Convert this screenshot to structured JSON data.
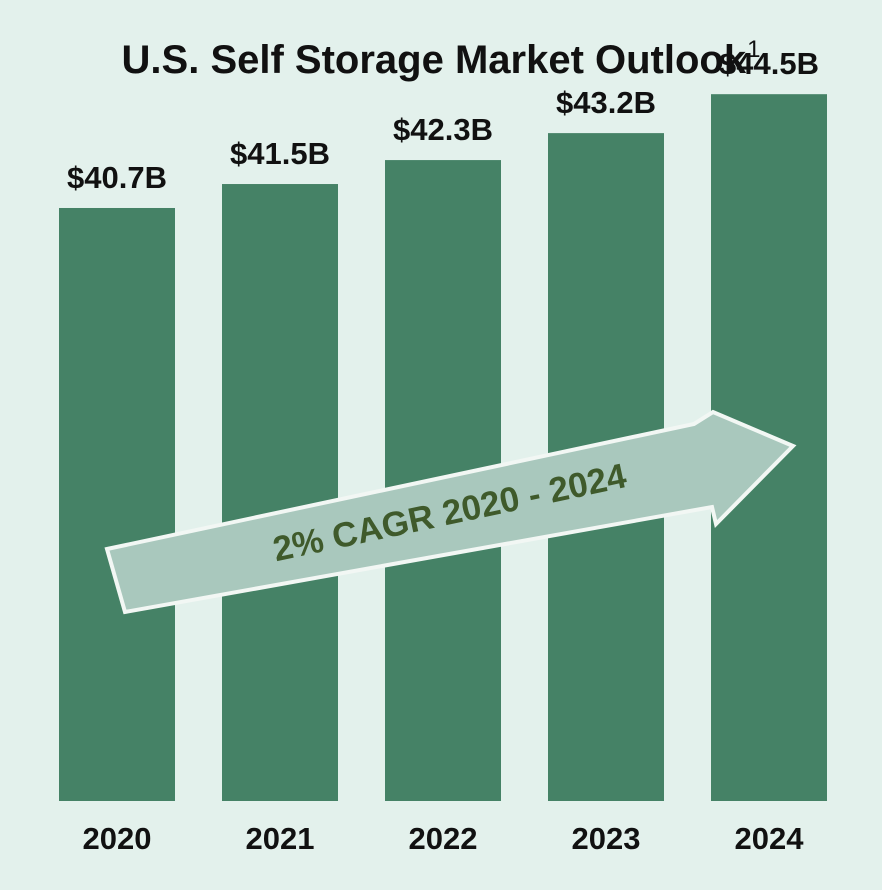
{
  "title": "U.S. Self Storage Market Outlook",
  "title_footnote": "1",
  "colors": {
    "background": "#e3f1ec",
    "bar": "#458266",
    "arrow_fill": "#a9c8bd",
    "arrow_stroke": "#f2f7f4",
    "arrow_text": "#3f5a2b"
  },
  "annotation": "2% CAGR 2020 - 2024",
  "chart_data": {
    "type": "bar",
    "categories": [
      "2020",
      "2021",
      "2022",
      "2023",
      "2024"
    ],
    "values": [
      40.7,
      41.5,
      42.3,
      43.2,
      44.5
    ],
    "data_labels": [
      "$40.7B",
      "$41.5B",
      "$42.3B",
      "$43.2B",
      "$44.5B"
    ],
    "title": "U.S. Self Storage Market Outlook",
    "xlabel": "",
    "ylabel": "",
    "grid": false,
    "legend": "none"
  }
}
